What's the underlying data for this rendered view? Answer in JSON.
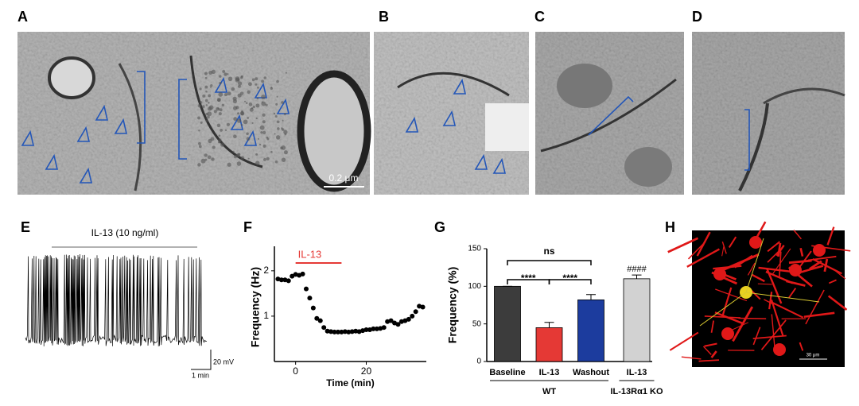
{
  "panel_labels": [
    "A",
    "B",
    "C",
    "D",
    "E",
    "F",
    "G",
    "H"
  ],
  "panel_a": {
    "scale_bar": "0.2 μm"
  },
  "panel_e": {
    "treatment": "IL-13 (10 ng/ml)",
    "scale_y": "20 mV",
    "scale_x": "1 min"
  },
  "panel_h": {
    "scale_bar": "30 μm"
  },
  "chart_data": [
    {
      "type": "scatter",
      "y_label": "Frequency (Hz)",
      "x_label": "Time (min)",
      "annotation": "IL-13",
      "annotation_color": "#e53935",
      "treatment_period": [
        0,
        13
      ],
      "color": "#000000",
      "x": [
        -5,
        -4,
        -3,
        -2,
        -1,
        0,
        1,
        2,
        3,
        4,
        5,
        6,
        7,
        8,
        9,
        10,
        11,
        12,
        13,
        14,
        15,
        16,
        17,
        18,
        19,
        20,
        21,
        22,
        23,
        24,
        25,
        26,
        27,
        28,
        29,
        30,
        31,
        32,
        33,
        34,
        35,
        36
      ],
      "values": [
        1.82,
        1.8,
        1.8,
        1.78,
        1.88,
        1.92,
        1.9,
        1.93,
        1.6,
        1.4,
        1.18,
        0.95,
        0.9,
        0.75,
        0.67,
        0.66,
        0.65,
        0.65,
        0.65,
        0.66,
        0.65,
        0.66,
        0.67,
        0.66,
        0.68,
        0.7,
        0.7,
        0.72,
        0.72,
        0.73,
        0.75,
        0.88,
        0.9,
        0.85,
        0.82,
        0.88,
        0.9,
        0.93,
        1.0,
        1.1,
        1.22,
        1.2
      ],
      "xlim": [
        -6,
        37
      ],
      "ylim": [
        0,
        2.4
      ],
      "xticks": [
        0,
        20
      ],
      "yticks": [
        1,
        2
      ]
    },
    {
      "type": "bar",
      "y_label": "Frequency (%)",
      "categories": [
        "Baseline",
        "IL-13",
        "Washout",
        "IL-13"
      ],
      "values": [
        100,
        45,
        82,
        110
      ],
      "errors": [
        0,
        7,
        7,
        5
      ],
      "colors": [
        "#3c3c3c",
        "#e53935",
        "#1c3c9e",
        "#d2d2d2"
      ],
      "ylim": [
        0,
        150
      ],
      "yticks": [
        0,
        50,
        100,
        150
      ],
      "significance": [
        {
          "from": 0,
          "to": 1,
          "label": "****"
        },
        {
          "from": 1,
          "to": 2,
          "label": "****"
        },
        {
          "from": 0,
          "to": 2,
          "label": "ns"
        }
      ],
      "ko_mark": "####",
      "groups": [
        {
          "label": "WT",
          "from": 0,
          "to": 2
        },
        {
          "label": "IL-13Rα1 KO",
          "from": 3,
          "to": 3
        }
      ]
    }
  ]
}
